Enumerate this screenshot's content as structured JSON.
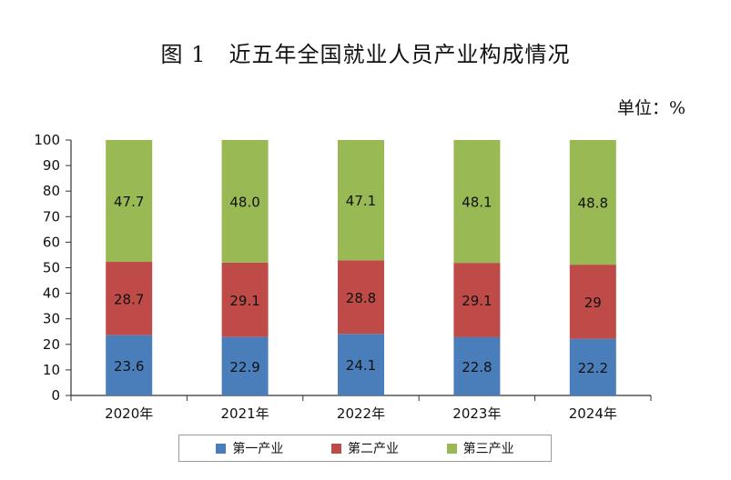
{
  "title": "图 1　近五年全国就业人员产业构成情况",
  "unit_label": "单位：%",
  "chart_data": {
    "type": "bar",
    "stacked": true,
    "categories": [
      "2020年",
      "2021年",
      "2022年",
      "2023年",
      "2024年"
    ],
    "series": [
      {
        "name": "第一产业",
        "color": "#4a7ebb",
        "values": [
          23.6,
          22.9,
          24.1,
          22.8,
          22.2
        ]
      },
      {
        "name": "第二产业",
        "color": "#be4b48",
        "values": [
          28.7,
          29.1,
          28.8,
          29.1,
          29
        ]
      },
      {
        "name": "第三产业",
        "color": "#98b954",
        "values": [
          47.7,
          48.0,
          47.1,
          48.1,
          48.8
        ]
      }
    ],
    "data_labels": [
      [
        "23.6",
        "22.9",
        "24.1",
        "22.8",
        "22.2"
      ],
      [
        "28.7",
        "29.1",
        "28.8",
        "29.1",
        "29"
      ],
      [
        "47.7",
        "48.0",
        "47.1",
        "48.1",
        "48.8"
      ]
    ],
    "yticks": [
      "0",
      "10",
      "20",
      "30",
      "40",
      "50",
      "60",
      "70",
      "80",
      "90",
      "100"
    ],
    "ylim": [
      0,
      100
    ],
    "grid": false,
    "legend_position": "bottom"
  }
}
